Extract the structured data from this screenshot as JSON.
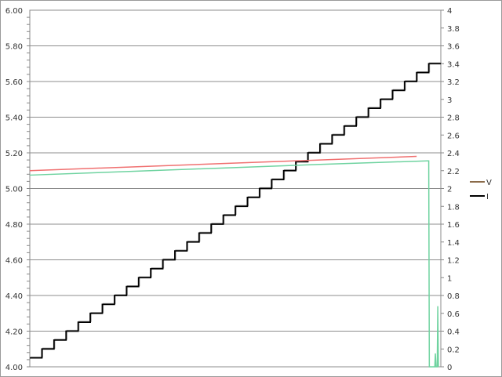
{
  "chart_data": {
    "type": "line",
    "title": "",
    "xlabel": "",
    "ylabel": "",
    "y_left": {
      "min": 4.0,
      "max": 6.0,
      "major": 0.2,
      "ticks": [
        "4.00",
        "4.20",
        "4.40",
        "4.60",
        "4.80",
        "5.00",
        "5.20",
        "5.40",
        "5.60",
        "5.80",
        "6.00"
      ]
    },
    "y_right": {
      "min": 0,
      "max": 4,
      "major": 0.2,
      "ticks": [
        "0",
        "0.2",
        "0.4",
        "0.6",
        "0.8",
        "1",
        "1.2",
        "1.4",
        "1.6",
        "1.8",
        "2",
        "2.2",
        "2.4",
        "2.6",
        "2.8",
        "3",
        "3.2",
        "3.4",
        "3.6",
        "3.8",
        "4"
      ]
    },
    "x_range": [
      0,
      34
    ],
    "grid": true,
    "legend_position": "right",
    "legend": [
      {
        "name": "V",
        "color": "#8b6b4a"
      },
      {
        "name": "I",
        "color": "#000000"
      }
    ],
    "series": [
      {
        "axis": "right",
        "color": "#000000",
        "step": true,
        "levels": [
          0.1,
          0.2,
          0.3,
          0.4,
          0.5,
          0.6,
          0.7,
          0.8,
          0.9,
          1.0,
          1.1,
          1.2,
          1.3,
          1.4,
          1.5,
          1.6,
          1.7,
          1.8,
          1.9,
          2.0,
          2.1,
          2.2,
          2.3,
          2.4,
          2.5,
          2.6,
          2.7,
          2.8,
          2.9,
          3.0,
          3.1,
          3.2,
          3.3,
          3.4
        ]
      },
      {
        "axis": "left",
        "color": "#f07070",
        "points": [
          [
            0,
            5.1
          ],
          [
            8,
            5.12
          ],
          [
            16,
            5.14
          ],
          [
            24,
            5.16
          ],
          [
            32,
            5.18
          ]
        ]
      },
      {
        "axis": "left",
        "color": "#6fd3a0",
        "points": [
          [
            0,
            5.075
          ],
          [
            8,
            5.095
          ],
          [
            16,
            5.115
          ],
          [
            24,
            5.135
          ],
          [
            32.9,
            5.155
          ],
          [
            33,
            5.155
          ],
          [
            33.05,
            4.0
          ],
          [
            33.5,
            4.0
          ],
          [
            33.55,
            4.075
          ],
          [
            33.6,
            4.0
          ],
          [
            33.7,
            4.0
          ],
          [
            33.75,
            4.34
          ],
          [
            33.8,
            4.0
          ]
        ]
      }
    ]
  }
}
